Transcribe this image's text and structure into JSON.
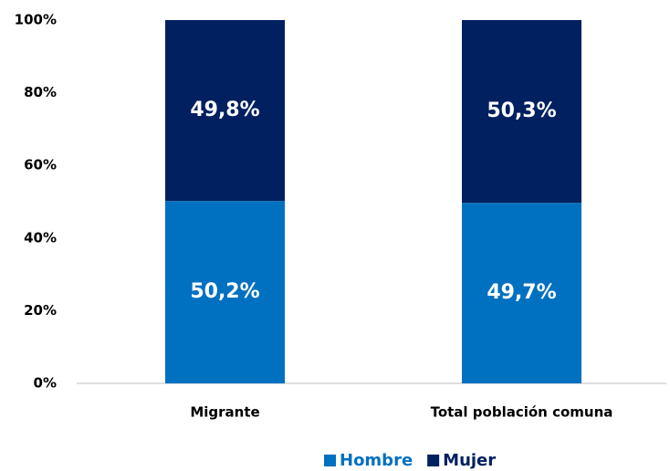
{
  "chart_data": {
    "type": "stacked_bar",
    "categories": [
      "Migrante",
      "Total población comuna"
    ],
    "series": [
      {
        "name": "Hombre",
        "color": "#0070c0",
        "values": [
          50.2,
          49.7
        ],
        "value_labels": [
          "50,2%",
          "49,7%"
        ]
      },
      {
        "name": "Mujer",
        "color": "#002060",
        "values": [
          49.8,
          50.3
        ],
        "value_labels": [
          "49,8%",
          "50,3%"
        ]
      }
    ],
    "ylim": [
      0,
      100
    ],
    "yticks": [
      {
        "value": 0,
        "label": "0%"
      },
      {
        "value": 20,
        "label": "20%"
      },
      {
        "value": 40,
        "label": "40%"
      },
      {
        "value": 60,
        "label": "60%"
      },
      {
        "value": 80,
        "label": "80%"
      },
      {
        "value": 100,
        "label": "100%"
      }
    ],
    "legend": "bottom"
  }
}
